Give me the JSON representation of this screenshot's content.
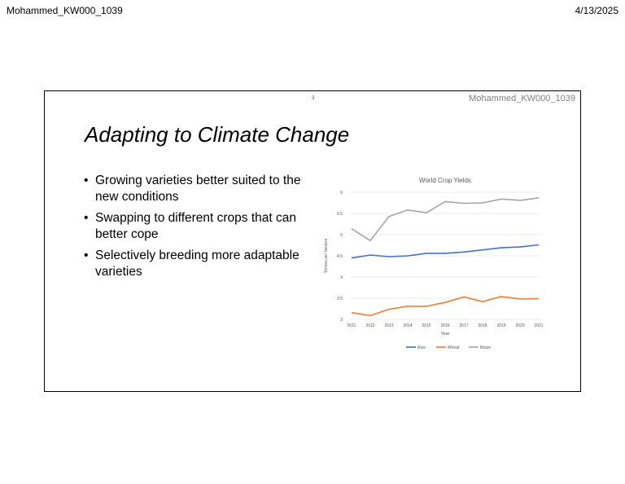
{
  "page_header": {
    "left": "Mohammed_KW000_1039",
    "right": "4/13/2025"
  },
  "slide": {
    "number": "3",
    "footer": "Mohammed_KW000_1039",
    "title": "Adapting to Climate Change",
    "bullets": [
      "Growing varieties better suited to the new conditions",
      "Swapping to different crops that can better cope",
      "Selectively breeding more adaptable varieties"
    ]
  },
  "chart_data": {
    "type": "line",
    "title": "World Crop Yields",
    "xlabel": "Year",
    "ylabel": "Tonnes per hectare",
    "categories": [
      "2011",
      "2012",
      "2013",
      "2014",
      "2015",
      "2016",
      "2017",
      "2018",
      "2019",
      "2020",
      "2021"
    ],
    "yticks": [
      "3",
      "3.5",
      "4",
      "4.5",
      "5",
      "5.5",
      "6"
    ],
    "ylim": [
      3,
      6
    ],
    "grid": true,
    "legend": "bottom",
    "series": [
      {
        "name": "Rice",
        "color": "#4472C4",
        "values": [
          4.45,
          4.52,
          4.48,
          4.5,
          4.56,
          4.56,
          4.59,
          4.64,
          4.69,
          4.71,
          4.76
        ]
      },
      {
        "name": "Wheat",
        "color": "#ED7D31",
        "values": [
          3.16,
          3.09,
          3.24,
          3.31,
          3.31,
          3.4,
          3.53,
          3.42,
          3.54,
          3.48,
          3.49
        ]
      },
      {
        "name": "Maize",
        "color": "#A5A5A5",
        "values": [
          5.14,
          4.86,
          5.43,
          5.58,
          5.52,
          5.78,
          5.74,
          5.75,
          5.84,
          5.81,
          5.87
        ]
      }
    ]
  }
}
